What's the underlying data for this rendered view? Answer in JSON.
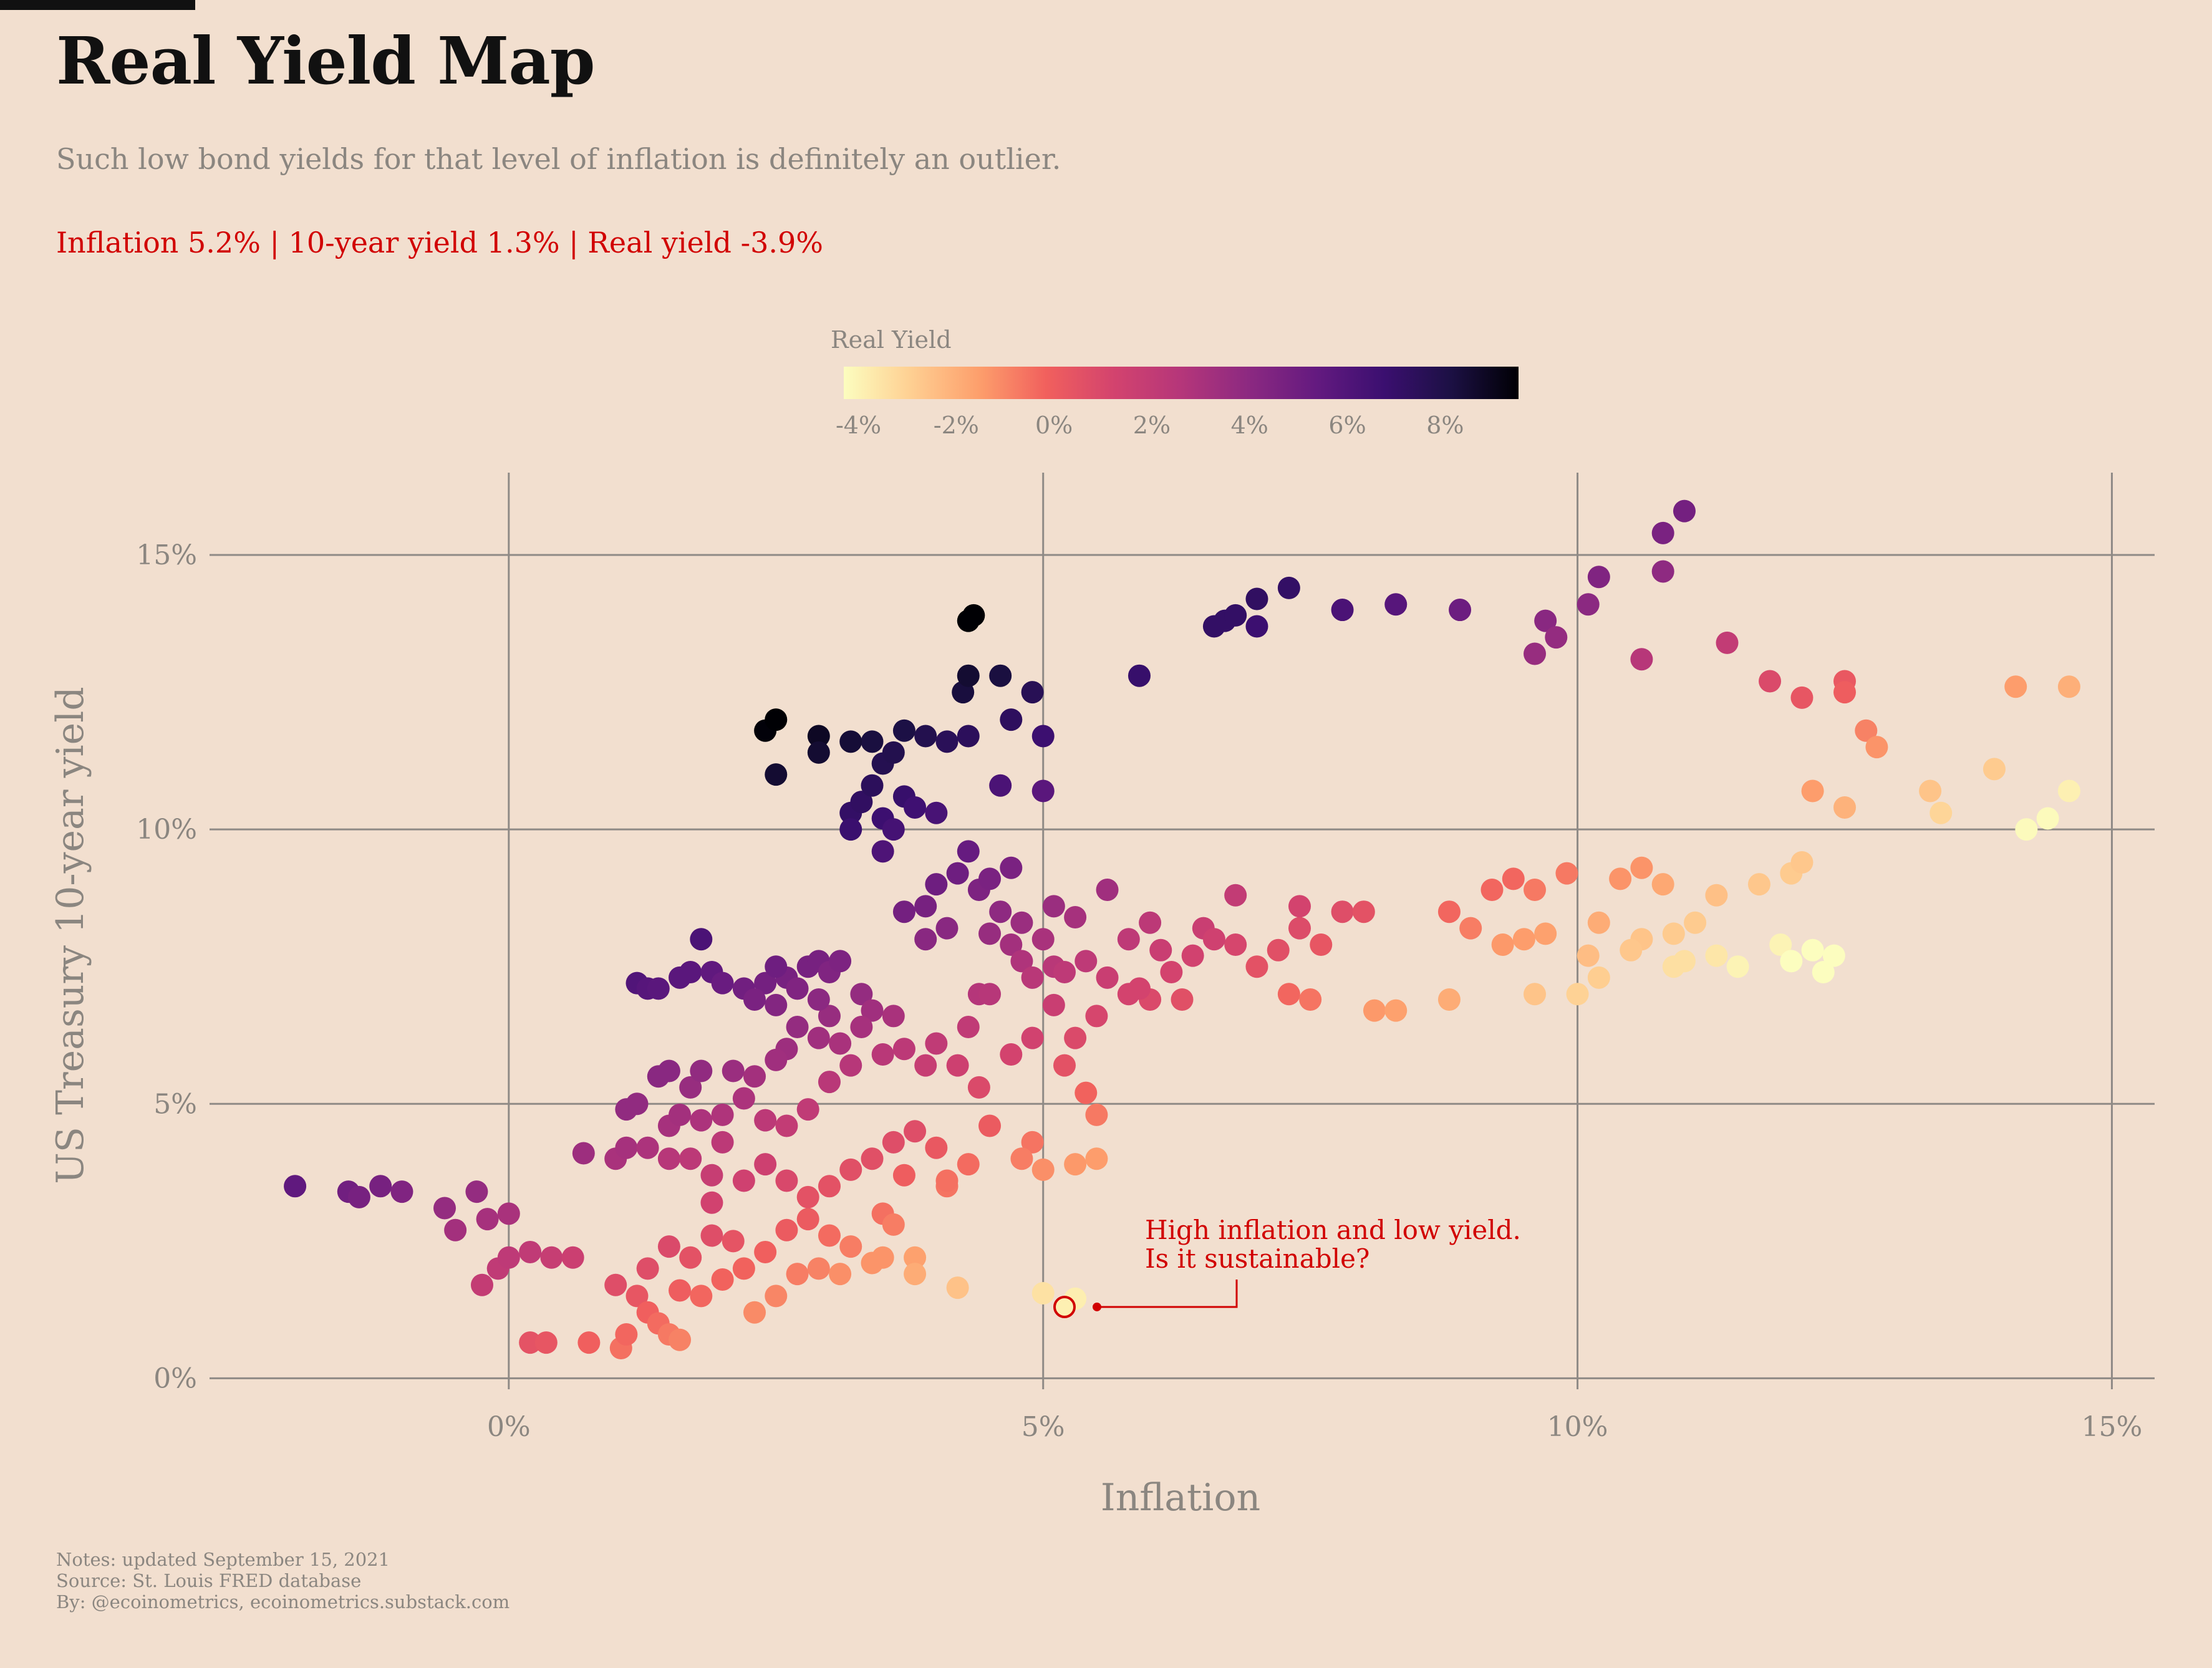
{
  "header": {
    "title": "Real Yield Map",
    "subtitle": "Such low bond yields for that level of inflation is definitely an outlier.",
    "stats": "Inflation 5.2% | 10-year yield 1.3% | Real yield -3.9%"
  },
  "legend": {
    "title": "Real Yield",
    "ticks": [
      "-4%",
      "-2%",
      "0%",
      "2%",
      "4%",
      "6%",
      "8%"
    ],
    "tick_values": [
      -4,
      -2,
      0,
      2,
      4,
      6,
      8
    ],
    "range": [
      -4.3,
      9.5
    ],
    "colormap": "magma-reversed"
  },
  "annotation": {
    "line1": "High inflation and low yield.",
    "line2": "Is it sustainable?",
    "point": {
      "x": 5.2,
      "y": 1.3
    },
    "color": "#d10000"
  },
  "footer": {
    "notes": "Notes: updated September 15, 2021",
    "source": "Source: St. Louis FRED database",
    "by": "By: @ecoinometrics, ecoinometrics.substack.com"
  },
  "colors": {
    "background": "#f2dfcf",
    "grid": "#8f8a86",
    "accent": "#d10000",
    "muted": "#8b8680"
  },
  "chart_data": {
    "type": "scatter",
    "title": "Real Yield Map",
    "xlabel": "Inflation",
    "ylabel": "US Treasury 10-year yield",
    "xlim": [
      -2.8,
      15.4
    ],
    "ylim": [
      -0.2,
      16.5
    ],
    "x_ticks": [
      0,
      5,
      10,
      15
    ],
    "x_tick_labels": [
      "0%",
      "5%",
      "10%",
      "15%"
    ],
    "y_ticks": [
      0,
      5,
      10,
      15
    ],
    "y_tick_labels": [
      "0%",
      "5%",
      "10%",
      "15%"
    ],
    "grid": true,
    "color_by": "real_yield = y - x",
    "highlight_point": {
      "x": 5.2,
      "y": 1.3
    },
    "points": [
      [
        -2.0,
        3.5
      ],
      [
        -1.5,
        3.4
      ],
      [
        -1.4,
        3.3
      ],
      [
        -1.2,
        3.5
      ],
      [
        -1.0,
        3.4
      ],
      [
        -0.6,
        3.1
      ],
      [
        -0.5,
        2.7
      ],
      [
        -0.3,
        3.4
      ],
      [
        -0.2,
        2.9
      ],
      [
        0.0,
        3.0
      ],
      [
        -0.25,
        1.7
      ],
      [
        -0.1,
        2.0
      ],
      [
        0.0,
        2.2
      ],
      [
        0.2,
        2.3
      ],
      [
        0.4,
        2.2
      ],
      [
        0.6,
        2.2
      ],
      [
        0.7,
        4.1
      ],
      [
        0.2,
        0.65
      ],
      [
        0.35,
        0.65
      ],
      [
        0.75,
        0.65
      ],
      [
        1.05,
        0.55
      ],
      [
        1.2,
        7.2
      ],
      [
        1.3,
        7.1
      ],
      [
        1.4,
        7.1
      ],
      [
        1.6,
        7.3
      ],
      [
        1.7,
        7.4
      ],
      [
        1.8,
        8.0
      ],
      [
        1.9,
        7.4
      ],
      [
        2.0,
        7.2
      ],
      [
        1.0,
        4.0
      ],
      [
        1.1,
        4.2
      ],
      [
        1.1,
        4.9
      ],
      [
        1.2,
        5.0
      ],
      [
        1.4,
        5.5
      ],
      [
        1.5,
        5.6
      ],
      [
        1.7,
        5.3
      ],
      [
        1.8,
        5.6
      ],
      [
        2.1,
        5.6
      ],
      [
        1.5,
        4.6
      ],
      [
        1.6,
        4.8
      ],
      [
        1.3,
        4.2
      ],
      [
        1.5,
        4.0
      ],
      [
        1.7,
        4.0
      ],
      [
        1.9,
        3.7
      ],
      [
        2.0,
        4.3
      ],
      [
        1.8,
        4.7
      ],
      [
        2.2,
        7.1
      ],
      [
        2.4,
        7.2
      ],
      [
        2.5,
        6.8
      ],
      [
        2.6,
        7.3
      ],
      [
        2.7,
        7.1
      ],
      [
        2.8,
        7.5
      ],
      [
        2.9,
        7.6
      ],
      [
        3.0,
        7.4
      ],
      [
        3.1,
        7.6
      ],
      [
        3.3,
        7.0
      ],
      [
        3.4,
        6.7
      ],
      [
        3.0,
        6.6
      ],
      [
        2.9,
        6.2
      ],
      [
        2.7,
        6.4
      ],
      [
        2.6,
        6.0
      ],
      [
        2.5,
        5.8
      ],
      [
        2.3,
        5.5
      ],
      [
        2.2,
        5.1
      ],
      [
        2.0,
        4.8
      ],
      [
        2.4,
        4.7
      ],
      [
        2.6,
        4.6
      ],
      [
        2.8,
        4.9
      ],
      [
        3.0,
        5.4
      ],
      [
        3.2,
        5.7
      ],
      [
        3.5,
        5.9
      ],
      [
        3.7,
        6.0
      ],
      [
        3.9,
        5.7
      ],
      [
        3.1,
        6.1
      ],
      [
        3.3,
        6.4
      ],
      [
        2.9,
        6.9
      ],
      [
        2.5,
        7.5
      ],
      [
        2.3,
        6.9
      ],
      [
        1.0,
        1.7
      ],
      [
        1.2,
        1.5
      ],
      [
        1.3,
        1.2
      ],
      [
        1.4,
        1.0
      ],
      [
        1.5,
        0.8
      ],
      [
        1.6,
        0.7
      ],
      [
        1.1,
        0.8
      ],
      [
        1.3,
        2.0
      ],
      [
        1.5,
        2.4
      ],
      [
        1.7,
        2.2
      ],
      [
        1.9,
        2.6
      ],
      [
        2.1,
        2.5
      ],
      [
        1.6,
        1.6
      ],
      [
        1.8,
        1.5
      ],
      [
        2.0,
        1.8
      ],
      [
        2.2,
        2.0
      ],
      [
        2.4,
        2.3
      ],
      [
        2.6,
        2.7
      ],
      [
        2.8,
        2.9
      ],
      [
        3.0,
        2.6
      ],
      [
        3.2,
        2.4
      ],
      [
        3.4,
        2.1
      ],
      [
        2.5,
        1.5
      ],
      [
        2.3,
        1.2
      ],
      [
        2.7,
        1.9
      ],
      [
        2.9,
        2.0
      ],
      [
        3.1,
        1.9
      ],
      [
        1.9,
        3.2
      ],
      [
        2.2,
        3.6
      ],
      [
        2.4,
        3.9
      ],
      [
        2.6,
        3.6
      ],
      [
        2.8,
        3.3
      ],
      [
        3.0,
        3.5
      ],
      [
        3.2,
        3.8
      ],
      [
        3.4,
        4.0
      ],
      [
        3.6,
        4.3
      ],
      [
        3.8,
        4.5
      ],
      [
        4.0,
        4.2
      ],
      [
        3.7,
        3.7
      ],
      [
        4.1,
        3.5
      ],
      [
        4.3,
        3.9
      ],
      [
        4.5,
        4.6
      ],
      [
        4.4,
        5.3
      ],
      [
        4.2,
        5.7
      ],
      [
        4.0,
        6.1
      ],
      [
        4.3,
        6.4
      ],
      [
        4.4,
        7.0
      ],
      [
        3.6,
        6.6
      ],
      [
        3.5,
        3.0
      ],
      [
        3.6,
        2.8
      ],
      [
        3.5,
        2.2
      ],
      [
        3.8,
        2.2
      ],
      [
        3.8,
        1.9
      ],
      [
        4.2,
        1.65
      ],
      [
        4.1,
        3.6
      ],
      [
        3.2,
        10.3
      ],
      [
        3.3,
        10.5
      ],
      [
        3.4,
        10.8
      ],
      [
        3.5,
        11.2
      ],
      [
        3.6,
        11.4
      ],
      [
        3.7,
        10.6
      ],
      [
        3.8,
        10.4
      ],
      [
        3.5,
        10.2
      ],
      [
        3.6,
        10.0
      ],
      [
        3.2,
        10.0
      ],
      [
        4.0,
        10.3
      ],
      [
        3.5,
        9.6
      ],
      [
        3.7,
        11.8
      ],
      [
        3.9,
        11.7
      ],
      [
        4.1,
        11.6
      ],
      [
        4.3,
        11.7
      ],
      [
        4.25,
        12.5
      ],
      [
        4.3,
        12.8
      ],
      [
        4.3,
        13.8
      ],
      [
        4.35,
        13.9
      ],
      [
        4.6,
        12.8
      ],
      [
        4.9,
        12.5
      ],
      [
        4.7,
        12.0
      ],
      [
        5.0,
        11.7
      ],
      [
        5.0,
        10.7
      ],
      [
        4.6,
        10.8
      ],
      [
        3.4,
        11.6
      ],
      [
        2.4,
        11.8
      ],
      [
        2.5,
        12.0
      ],
      [
        2.9,
        11.7
      ],
      [
        2.9,
        11.4
      ],
      [
        3.2,
        11.6
      ],
      [
        2.5,
        11.0
      ],
      [
        3.7,
        8.5
      ],
      [
        3.9,
        8.6
      ],
      [
        4.0,
        9.0
      ],
      [
        4.2,
        9.2
      ],
      [
        4.4,
        8.9
      ],
      [
        4.5,
        9.1
      ],
      [
        4.6,
        8.5
      ],
      [
        4.8,
        8.3
      ],
      [
        5.0,
        8.0
      ],
      [
        4.3,
        9.6
      ],
      [
        4.7,
        9.3
      ],
      [
        3.9,
        8.0
      ],
      [
        4.1,
        8.2
      ],
      [
        4.5,
        8.1
      ],
      [
        4.7,
        7.9
      ],
      [
        5.1,
        8.6
      ],
      [
        5.3,
        8.4
      ],
      [
        5.1,
        7.5
      ],
      [
        4.8,
        7.6
      ],
      [
        4.9,
        7.3
      ],
      [
        4.5,
        7.0
      ],
      [
        5.2,
        7.4
      ],
      [
        5.4,
        7.6
      ],
      [
        5.6,
        7.3
      ],
      [
        5.8,
        7.0
      ],
      [
        6.0,
        6.9
      ],
      [
        6.2,
        7.4
      ],
      [
        6.4,
        7.7
      ],
      [
        6.5,
        8.2
      ],
      [
        6.8,
        7.9
      ],
      [
        7.0,
        7.5
      ],
      [
        7.2,
        7.8
      ],
      [
        7.4,
        8.2
      ],
      [
        7.6,
        7.9
      ],
      [
        7.8,
        8.5
      ],
      [
        8.0,
        8.5
      ],
      [
        7.4,
        8.6
      ],
      [
        8.8,
        8.5
      ],
      [
        9.0,
        8.2
      ],
      [
        9.2,
        8.9
      ],
      [
        9.4,
        9.1
      ],
      [
        9.6,
        8.9
      ],
      [
        9.9,
        9.2
      ],
      [
        6.8,
        8.8
      ],
      [
        7.3,
        7.0
      ],
      [
        7.5,
        6.9
      ],
      [
        8.1,
        6.7
      ],
      [
        8.3,
        6.7
      ],
      [
        8.8,
        6.9
      ],
      [
        5.8,
        8.0
      ],
      [
        6.0,
        8.3
      ],
      [
        6.1,
        7.8
      ],
      [
        5.6,
        8.9
      ],
      [
        6.6,
        8.0
      ],
      [
        6.3,
        6.9
      ],
      [
        5.9,
        7.1
      ],
      [
        5.5,
        6.6
      ],
      [
        5.3,
        6.2
      ],
      [
        5.1,
        6.8
      ],
      [
        4.9,
        6.2
      ],
      [
        4.7,
        5.9
      ],
      [
        5.2,
        5.7
      ],
      [
        5.4,
        5.2
      ],
      [
        5.5,
        4.8
      ],
      [
        4.9,
        4.3
      ],
      [
        4.8,
        4.0
      ],
      [
        5.0,
        3.8
      ],
      [
        5.3,
        3.9
      ],
      [
        5.5,
        4.0
      ],
      [
        5.0,
        1.55
      ],
      [
        5.3,
        1.45
      ],
      [
        5.9,
        12.8
      ],
      [
        6.6,
        13.7
      ],
      [
        6.7,
        13.8
      ],
      [
        6.8,
        13.9
      ],
      [
        7.0,
        14.2
      ],
      [
        7.0,
        13.7
      ],
      [
        7.3,
        14.4
      ],
      [
        7.8,
        14.0
      ],
      [
        8.3,
        14.1
      ],
      [
        8.9,
        14.0
      ],
      [
        9.6,
        13.2
      ],
      [
        9.7,
        13.8
      ],
      [
        9.8,
        13.5
      ],
      [
        10.1,
        14.1
      ],
      [
        10.2,
        14.6
      ],
      [
        10.6,
        13.1
      ],
      [
        10.8,
        14.7
      ],
      [
        10.8,
        15.4
      ],
      [
        11.0,
        15.8
      ],
      [
        11.4,
        13.4
      ],
      [
        11.8,
        12.7
      ],
      [
        12.1,
        12.4
      ],
      [
        12.5,
        12.7
      ],
      [
        12.5,
        12.5
      ],
      [
        12.7,
        11.8
      ],
      [
        12.8,
        11.5
      ],
      [
        13.3,
        10.7
      ],
      [
        13.4,
        10.3
      ],
      [
        12.5,
        10.4
      ],
      [
        12.2,
        10.7
      ],
      [
        13.9,
        11.1
      ],
      [
        14.1,
        12.6
      ],
      [
        14.6,
        12.6
      ],
      [
        14.2,
        10.0
      ],
      [
        14.4,
        10.2
      ],
      [
        14.6,
        10.7
      ],
      [
        10.1,
        7.7
      ],
      [
        10.2,
        7.3
      ],
      [
        10.2,
        8.3
      ],
      [
        10.4,
        9.1
      ],
      [
        10.6,
        9.3
      ],
      [
        10.8,
        9.0
      ],
      [
        10.9,
        8.1
      ],
      [
        11.0,
        7.6
      ],
      [
        11.1,
        8.3
      ],
      [
        11.3,
        8.8
      ],
      [
        11.5,
        7.5
      ],
      [
        11.7,
        9.0
      ],
      [
        11.9,
        7.9
      ],
      [
        12.0,
        7.6
      ],
      [
        12.0,
        9.2
      ],
      [
        12.1,
        9.4
      ],
      [
        12.2,
        7.8
      ],
      [
        12.3,
        7.4
      ],
      [
        12.4,
        7.7
      ],
      [
        10.6,
        8.0
      ],
      [
        10.5,
        7.8
      ],
      [
        9.7,
        8.1
      ],
      [
        9.3,
        7.9
      ],
      [
        9.5,
        8.0
      ],
      [
        10.0,
        7.0
      ],
      [
        9.6,
        7.0
      ],
      [
        11.3,
        7.7
      ],
      [
        10.9,
        7.5
      ]
    ]
  }
}
